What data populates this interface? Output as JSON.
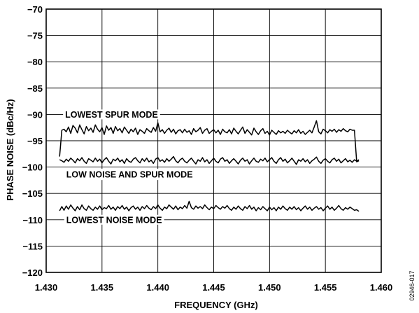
{
  "chart_data": {
    "type": "line",
    "xlabel": "FREQUENCY (GHz)",
    "ylabel": "PHASE NOISE (dBc/Hz)",
    "xlim": [
      1.43,
      1.46
    ],
    "ylim": [
      -120,
      -70
    ],
    "x_ticks": [
      "1.430",
      "1.435",
      "1.440",
      "1.445",
      "1.450",
      "1.455",
      "1.460"
    ],
    "y_ticks": [
      "−70",
      "−75",
      "−80",
      "−85",
      "−90",
      "−95",
      "−100",
      "−105",
      "−110",
      "−115",
      "−120"
    ],
    "grid": true,
    "figure_id": "02946-017",
    "series": [
      {
        "name": "LOWEST SPUR MODE",
        "x": [
          1.4312,
          1.4314,
          1.4316,
          1.4318,
          1.432,
          1.4322,
          1.4324,
          1.4326,
          1.4328,
          1.433,
          1.4332,
          1.4334,
          1.4336,
          1.4338,
          1.434,
          1.4342,
          1.4344,
          1.4346,
          1.4348,
          1.435,
          1.4352,
          1.4354,
          1.4356,
          1.4358,
          1.436,
          1.4362,
          1.4364,
          1.4366,
          1.4368,
          1.437,
          1.4372,
          1.4374,
          1.4376,
          1.4378,
          1.438,
          1.4382,
          1.4384,
          1.4386,
          1.4388,
          1.439,
          1.4392,
          1.4394,
          1.4396,
          1.4398,
          1.44,
          1.4402,
          1.4404,
          1.4406,
          1.4408,
          1.441,
          1.4412,
          1.4414,
          1.4416,
          1.4418,
          1.442,
          1.4422,
          1.4424,
          1.4426,
          1.4428,
          1.443,
          1.4432,
          1.4434,
          1.4436,
          1.4438,
          1.444,
          1.4442,
          1.4444,
          1.4446,
          1.4448,
          1.445,
          1.4452,
          1.4454,
          1.4456,
          1.4458,
          1.446,
          1.4462,
          1.4464,
          1.4466,
          1.4468,
          1.447,
          1.4472,
          1.4474,
          1.4476,
          1.4478,
          1.448,
          1.4482,
          1.4484,
          1.4486,
          1.4488,
          1.449,
          1.4492,
          1.4494,
          1.4496,
          1.4498,
          1.45,
          1.4502,
          1.4504,
          1.4506,
          1.4508,
          1.451,
          1.4512,
          1.4514,
          1.4516,
          1.4518,
          1.452,
          1.4522,
          1.4524,
          1.4526,
          1.4528,
          1.453,
          1.4532,
          1.4534,
          1.4536,
          1.4538,
          1.454,
          1.4542,
          1.4544,
          1.4546,
          1.4548,
          1.455,
          1.4552,
          1.4554,
          1.4556,
          1.4558,
          1.456,
          1.4562,
          1.4564,
          1.4566,
          1.4568,
          1.457,
          1.4572,
          1.4574,
          1.4576,
          1.4578,
          1.458
        ],
        "y": [
          -98.0,
          -93.0,
          -92.8,
          -93.3,
          -92.4,
          -93.6,
          -92.1,
          -92.6,
          -93.5,
          -92.0,
          -92.9,
          -93.7,
          -92.3,
          -93.1,
          -92.6,
          -93.4,
          -92.0,
          -92.8,
          -93.3,
          -92.5,
          -93.8,
          -92.2,
          -93.0,
          -92.5,
          -93.6,
          -92.3,
          -93.1,
          -92.7,
          -93.5,
          -92.4,
          -93.0,
          -93.6,
          -92.8,
          -93.3,
          -92.6,
          -93.8,
          -92.9,
          -93.2,
          -93.6,
          -92.7,
          -93.1,
          -93.4,
          -92.5,
          -93.2,
          -91.6,
          -93.3,
          -92.9,
          -93.6,
          -93.0,
          -92.6,
          -93.4,
          -92.8,
          -93.7,
          -93.1,
          -92.9,
          -93.5,
          -92.8,
          -93.4,
          -93.1,
          -93.8,
          -92.7,
          -93.3,
          -93.0,
          -92.5,
          -93.6,
          -93.0,
          -92.7,
          -93.6,
          -93.2,
          -92.9,
          -93.5,
          -93.0,
          -93.8,
          -92.8,
          -93.3,
          -93.5,
          -92.9,
          -93.7,
          -92.6,
          -93.2,
          -93.7,
          -93.0,
          -92.4,
          -93.6,
          -92.9,
          -93.4,
          -93.9,
          -92.6,
          -93.3,
          -93.8,
          -93.1,
          -92.7,
          -93.6,
          -93.2,
          -93.9,
          -93.0,
          -93.4,
          -93.8,
          -93.1,
          -93.5,
          -93.2,
          -93.6,
          -93.0,
          -93.4,
          -93.7,
          -93.1,
          -93.5,
          -92.9,
          -93.6,
          -93.2,
          -93.8,
          -93.4,
          -93.0,
          -93.5,
          -92.4,
          -91.2,
          -93.3,
          -93.7,
          -92.8,
          -93.1,
          -93.5,
          -92.9,
          -93.2,
          -92.8,
          -93.4,
          -92.9,
          -93.2,
          -92.7,
          -93.1,
          -93.3,
          -92.8,
          -93.0,
          -93.0,
          -99.0,
          -98.8
        ],
        "label": "LOWEST SPUR MODE"
      },
      {
        "name": "LOW NOISE AND SPUR MODE",
        "x": [
          1.4312,
          1.4314,
          1.4316,
          1.4318,
          1.432,
          1.4322,
          1.4324,
          1.4326,
          1.4328,
          1.433,
          1.4332,
          1.4334,
          1.4336,
          1.4338,
          1.434,
          1.4342,
          1.4344,
          1.4346,
          1.4348,
          1.435,
          1.4352,
          1.4354,
          1.4356,
          1.4358,
          1.436,
          1.4362,
          1.4364,
          1.4366,
          1.4368,
          1.437,
          1.4372,
          1.4374,
          1.4376,
          1.4378,
          1.438,
          1.4382,
          1.4384,
          1.4386,
          1.4388,
          1.439,
          1.4392,
          1.4394,
          1.4396,
          1.4398,
          1.44,
          1.4402,
          1.4404,
          1.4406,
          1.4408,
          1.441,
          1.4412,
          1.4414,
          1.4416,
          1.4418,
          1.442,
          1.4422,
          1.4424,
          1.4426,
          1.4428,
          1.443,
          1.4432,
          1.4434,
          1.4436,
          1.4438,
          1.444,
          1.4442,
          1.4444,
          1.4446,
          1.4448,
          1.445,
          1.4452,
          1.4454,
          1.4456,
          1.4458,
          1.446,
          1.4462,
          1.4464,
          1.4466,
          1.4468,
          1.447,
          1.4472,
          1.4474,
          1.4476,
          1.4478,
          1.448,
          1.4482,
          1.4484,
          1.4486,
          1.4488,
          1.449,
          1.4492,
          1.4494,
          1.4496,
          1.4498,
          1.45,
          1.4502,
          1.4504,
          1.4506,
          1.4508,
          1.451,
          1.4512,
          1.4514,
          1.4516,
          1.4518,
          1.452,
          1.4522,
          1.4524,
          1.4526,
          1.4528,
          1.453,
          1.4532,
          1.4534,
          1.4536,
          1.4538,
          1.454,
          1.4542,
          1.4544,
          1.4546,
          1.4548,
          1.455,
          1.4552,
          1.4554,
          1.4556,
          1.4558,
          1.456,
          1.4562,
          1.4564,
          1.4566,
          1.4568,
          1.457,
          1.4572,
          1.4574,
          1.4576,
          1.4578,
          1.458
        ],
        "y": [
          -98.6,
          -98.8,
          -99.1,
          -98.5,
          -98.9,
          -98.3,
          -98.7,
          -99.2,
          -98.4,
          -98.8,
          -98.2,
          -98.9,
          -99.3,
          -98.4,
          -98.7,
          -99.0,
          -98.3,
          -98.9,
          -98.5,
          -99.2,
          -98.6,
          -98.2,
          -98.9,
          -99.4,
          -98.5,
          -98.8,
          -98.3,
          -99.0,
          -98.6,
          -99.3,
          -98.4,
          -98.9,
          -99.1,
          -98.5,
          -98.2,
          -98.8,
          -99.2,
          -98.4,
          -98.9,
          -98.3,
          -99.0,
          -98.7,
          -99.3,
          -98.5,
          -98.2,
          -98.9,
          -98.6,
          -99.1,
          -98.4,
          -98.9,
          -98.5,
          -98.0,
          -98.8,
          -99.2,
          -98.6,
          -98.3,
          -98.9,
          -99.2,
          -98.7,
          -98.3,
          -98.9,
          -99.4,
          -98.6,
          -98.9,
          -98.2,
          -99.0,
          -98.6,
          -99.3,
          -98.8,
          -98.3,
          -98.9,
          -99.2,
          -98.5,
          -98.2,
          -98.9,
          -98.6,
          -99.3,
          -98.8,
          -98.4,
          -98.9,
          -99.4,
          -98.7,
          -98.3,
          -98.9,
          -98.6,
          -99.4,
          -98.8,
          -98.3,
          -98.9,
          -99.1,
          -98.5,
          -98.8,
          -98.3,
          -99.0,
          -98.6,
          -98.2,
          -98.9,
          -99.3,
          -98.6,
          -98.2,
          -98.9,
          -98.5,
          -99.2,
          -98.8,
          -98.3,
          -98.9,
          -99.5,
          -98.6,
          -98.9,
          -98.4,
          -99.0,
          -98.6,
          -99.3,
          -98.8,
          -98.5,
          -98.1,
          -98.9,
          -99.3,
          -98.7,
          -98.4,
          -98.9,
          -99.2,
          -98.6,
          -98.3,
          -98.9,
          -98.5,
          -99.2,
          -98.8,
          -98.4,
          -99.0,
          -98.7,
          -99.1,
          -98.6,
          -98.9,
          -98.6
        ],
        "label": "LOW NOISE AND SPUR MODE"
      },
      {
        "name": "LOWEST NOISE MODE",
        "x": [
          1.4312,
          1.4314,
          1.4316,
          1.4318,
          1.432,
          1.4322,
          1.4324,
          1.4326,
          1.4328,
          1.433,
          1.4332,
          1.4334,
          1.4336,
          1.4338,
          1.434,
          1.4342,
          1.4344,
          1.4346,
          1.4348,
          1.435,
          1.4352,
          1.4354,
          1.4356,
          1.4358,
          1.436,
          1.4362,
          1.4364,
          1.4366,
          1.4368,
          1.437,
          1.4372,
          1.4374,
          1.4376,
          1.4378,
          1.438,
          1.4382,
          1.4384,
          1.4386,
          1.4388,
          1.439,
          1.4392,
          1.4394,
          1.4396,
          1.4398,
          1.44,
          1.4402,
          1.4404,
          1.4406,
          1.4408,
          1.441,
          1.4412,
          1.4414,
          1.4416,
          1.4418,
          1.442,
          1.4422,
          1.4424,
          1.4426,
          1.4428,
          1.443,
          1.4432,
          1.4434,
          1.4436,
          1.4438,
          1.444,
          1.4442,
          1.4444,
          1.4446,
          1.4448,
          1.445,
          1.4452,
          1.4454,
          1.4456,
          1.4458,
          1.446,
          1.4462,
          1.4464,
          1.4466,
          1.4468,
          1.447,
          1.4472,
          1.4474,
          1.4476,
          1.4478,
          1.448,
          1.4482,
          1.4484,
          1.4486,
          1.4488,
          1.449,
          1.4492,
          1.4494,
          1.4496,
          1.4498,
          1.45,
          1.4502,
          1.4504,
          1.4506,
          1.4508,
          1.451,
          1.4512,
          1.4514,
          1.4516,
          1.4518,
          1.452,
          1.4522,
          1.4524,
          1.4526,
          1.4528,
          1.453,
          1.4532,
          1.4534,
          1.4536,
          1.4538,
          1.454,
          1.4542,
          1.4544,
          1.4546,
          1.4548,
          1.455,
          1.4552,
          1.4554,
          1.4556,
          1.4558,
          1.456,
          1.4562,
          1.4564,
          1.4566,
          1.4568,
          1.457,
          1.4572,
          1.4574,
          1.4576,
          1.4578,
          1.458
        ],
        "y": [
          -108.3,
          -107.5,
          -108.2,
          -107.4,
          -108.0,
          -107.2,
          -107.8,
          -108.3,
          -107.5,
          -108.1,
          -107.2,
          -107.9,
          -108.2,
          -107.4,
          -107.9,
          -108.2,
          -107.6,
          -108.0,
          -107.4,
          -108.1,
          -107.7,
          -107.9,
          -107.3,
          -108.0,
          -107.6,
          -108.2,
          -107.5,
          -107.9,
          -107.3,
          -108.0,
          -107.6,
          -108.3,
          -107.7,
          -107.4,
          -108.0,
          -107.6,
          -108.2,
          -107.5,
          -107.9,
          -107.3,
          -107.8,
          -108.1,
          -107.5,
          -107.9,
          -107.2,
          -107.8,
          -108.2,
          -107.6,
          -107.9,
          -107.2,
          -107.6,
          -108.0,
          -107.4,
          -108.1,
          -107.6,
          -107.9,
          -107.3,
          -107.8,
          -106.5,
          -107.7,
          -108.0,
          -107.4,
          -107.8,
          -107.5,
          -107.9,
          -107.2,
          -107.7,
          -108.1,
          -107.6,
          -107.9,
          -107.3,
          -107.7,
          -108.0,
          -107.5,
          -107.8,
          -107.3,
          -107.9,
          -108.2,
          -107.6,
          -108.0,
          -107.4,
          -107.9,
          -108.2,
          -107.5,
          -107.9,
          -107.3,
          -108.0,
          -107.6,
          -108.3,
          -107.7,
          -108.1,
          -107.5,
          -107.9,
          -108.3,
          -107.6,
          -108.1,
          -107.7,
          -108.3,
          -107.6,
          -108.0,
          -107.4,
          -107.9,
          -108.2,
          -107.6,
          -108.0,
          -107.5,
          -108.1,
          -107.7,
          -108.3,
          -107.8,
          -107.4,
          -108.0,
          -107.6,
          -108.2,
          -107.8,
          -107.5,
          -108.0,
          -107.7,
          -108.3,
          -107.8,
          -107.4,
          -108.0,
          -107.6,
          -108.2,
          -107.8,
          -107.3,
          -107.9,
          -108.2,
          -107.7,
          -108.0,
          -107.6,
          -107.9,
          -108.2,
          -108.1,
          -108.4
        ],
        "label": "LOWEST NOISE MODE"
      }
    ]
  }
}
